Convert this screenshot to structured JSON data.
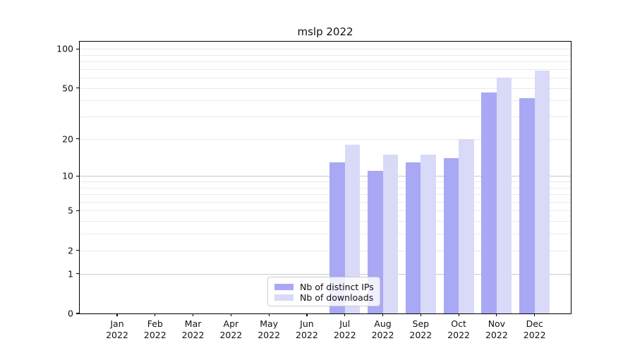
{
  "chart_data": {
    "type": "bar",
    "title": "mslp 2022",
    "categories": [
      "Jan",
      "Feb",
      "Mar",
      "Apr",
      "May",
      "Jun",
      "Jul",
      "Aug",
      "Sep",
      "Oct",
      "Nov",
      "Dec"
    ],
    "x_tick_year": "2022",
    "series": [
      {
        "name": "Nb of distinct IPs",
        "color": "#a8a8f5",
        "values": [
          0,
          0,
          0,
          0,
          0,
          0,
          13,
          11,
          13,
          14,
          46,
          42
        ]
      },
      {
        "name": "Nb of downloads",
        "color": "#d9d9f8",
        "values": [
          0,
          0,
          0,
          0,
          0,
          0,
          18,
          15,
          15,
          20,
          60,
          68
        ]
      }
    ],
    "y_axis": {
      "scale": "symlog",
      "transform": "log10(value+1)",
      "ticks": [
        0,
        1,
        2,
        5,
        10,
        20,
        50,
        100
      ],
      "ylim": [
        0,
        100
      ]
    },
    "gridlines": {
      "major_values": [
        1,
        10
      ],
      "minor_values": [
        2,
        3,
        4,
        5,
        6,
        7,
        8,
        9,
        20,
        30,
        40,
        50,
        60,
        70,
        80,
        90,
        100
      ],
      "major_color": "#c9c9c9",
      "minor_color": "#eaeaea"
    },
    "legend": {
      "position": "lower center",
      "entries": [
        "Nb of distinct IPs",
        "Nb of downloads"
      ]
    }
  }
}
